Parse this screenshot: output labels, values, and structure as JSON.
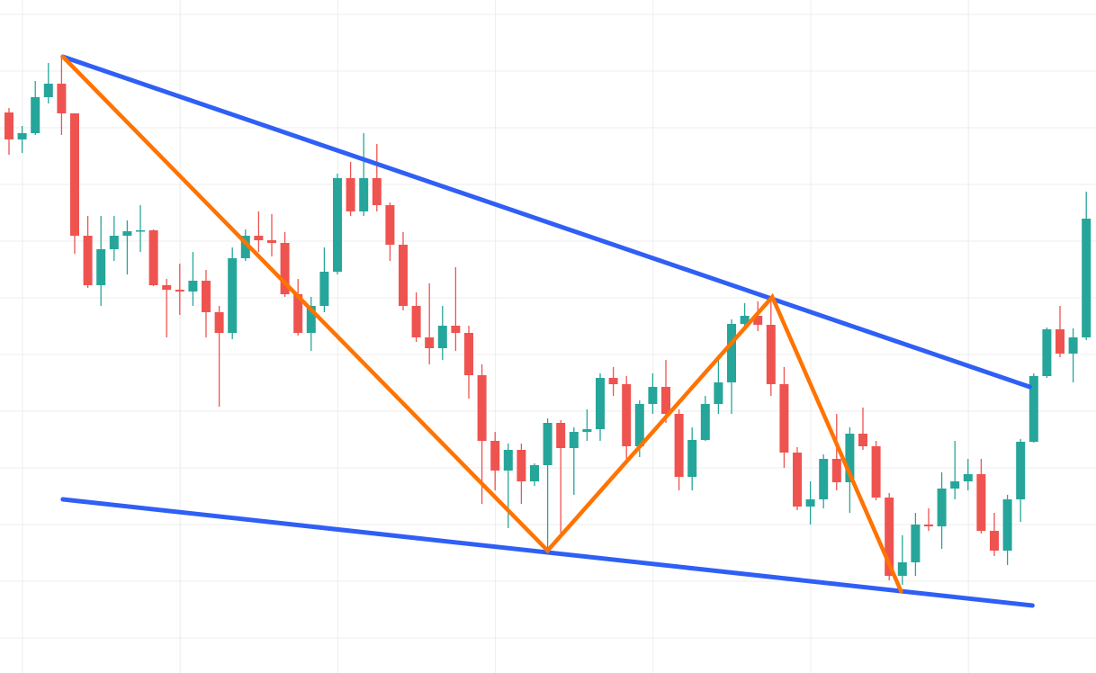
{
  "chart_data": {
    "type": "candlestick",
    "grid": true,
    "ylim": [
      0,
      74.8
    ],
    "xlim": [
      -0.685,
      82.74
    ],
    "up_color": "#26a69a",
    "down_color": "#ef5350",
    "candles": {
      "open": [
        62.3,
        59.3,
        60.0,
        64.0,
        65.5,
        62.2,
        48.6,
        43.1,
        47.1,
        48.6,
        49.1,
        49.2,
        43.1,
        42.6,
        42.4,
        43.6,
        40.1,
        37.8,
        46.1,
        48.6,
        48.1,
        47.8,
        42.1,
        37.8,
        40.8,
        44.6,
        55.0,
        51.3,
        55.0,
        52.0,
        47.6,
        40.8,
        37.3,
        36.1,
        38.6,
        37.8,
        33.1,
        25.8,
        22.5,
        24.8,
        21.3,
        23.1,
        27.8,
        25.0,
        26.8,
        27.1,
        32.8,
        32.1,
        25.2,
        29.9,
        31.8,
        28.8,
        21.8,
        25.9,
        29.9,
        32.3,
        38.8,
        39.7,
        38.7,
        32.1,
        24.5,
        18.5,
        19.3,
        23.8,
        21.2,
        26.6,
        25.2,
        19.5,
        10.8,
        12.3,
        16.5,
        16.3,
        20.5,
        21.3,
        22.1,
        15.8,
        13.6,
        19.3,
        25.7,
        33.0,
        38.2,
        35.5,
        37.3
      ],
      "high": [
        62.8,
        60.8,
        65.8,
        67.8,
        68.5,
        62.2,
        50.8,
        50.8,
        50.8,
        50.3,
        52.0,
        49.3,
        43.8,
        45.5,
        46.8,
        44.8,
        40.8,
        47.3,
        49.3,
        51.3,
        51.0,
        49.0,
        43.8,
        41.8,
        47.3,
        55.5,
        56.8,
        60.0,
        58.8,
        52.3,
        49.0,
        42.3,
        43.3,
        40.8,
        45.1,
        38.6,
        34.3,
        26.8,
        25.5,
        25.5,
        23.3,
        28.3,
        28.1,
        27.3,
        29.3,
        33.3,
        34.0,
        33.0,
        30.3,
        33.3,
        34.8,
        29.3,
        27.3,
        30.8,
        34.8,
        39.3,
        41.1,
        41.3,
        41.8,
        34.0,
        25.1,
        21.3,
        24.3,
        28.8,
        27.3,
        29.5,
        25.8,
        20.0,
        15.3,
        17.8,
        18.3,
        22.3,
        25.8,
        23.8,
        23.8,
        17.8,
        19.8,
        26.0,
        33.3,
        38.4,
        40.8,
        38.3,
        53.5
      ],
      "low": [
        57.6,
        57.8,
        59.8,
        63.3,
        59.8,
        46.6,
        42.8,
        40.8,
        45.8,
        44.3,
        46.8,
        43.0,
        37.3,
        39.8,
        40.8,
        37.3,
        29.6,
        37.1,
        45.8,
        46.8,
        46.3,
        41.8,
        37.5,
        35.8,
        40.1,
        44.3,
        50.8,
        50.8,
        51.3,
        45.8,
        40.3,
        36.8,
        34.3,
        34.8,
        35.8,
        30.5,
        18.8,
        20.3,
        16.1,
        18.8,
        20.8,
        13.6,
        15.0,
        19.8,
        25.8,
        25.8,
        30.8,
        23.8,
        24.0,
        28.8,
        27.8,
        20.3,
        20.3,
        25.8,
        28.8,
        28.8,
        38.3,
        38.0,
        30.8,
        22.8,
        18.1,
        16.5,
        18.3,
        20.3,
        17.8,
        24.8,
        19.2,
        10.3,
        9.8,
        10.8,
        15.8,
        13.8,
        19.3,
        20.3,
        15.5,
        13.0,
        12.0,
        16.8,
        25.6,
        32.8,
        35.1,
        32.3,
        37.0
      ],
      "close": [
        59.3,
        60.0,
        64.0,
        65.5,
        62.2,
        48.6,
        43.1,
        47.1,
        48.6,
        49.1,
        49.2,
        43.1,
        42.6,
        42.4,
        43.6,
        40.1,
        37.8,
        46.1,
        48.6,
        48.1,
        47.8,
        42.1,
        37.8,
        40.8,
        44.6,
        55.0,
        51.3,
        55.0,
        52.0,
        47.6,
        40.8,
        37.3,
        36.1,
        38.6,
        37.8,
        33.1,
        25.8,
        22.5,
        24.8,
        21.3,
        23.1,
        27.8,
        25.0,
        26.8,
        27.1,
        32.8,
        32.1,
        25.2,
        29.9,
        31.8,
        28.8,
        21.8,
        25.9,
        29.9,
        32.3,
        38.8,
        39.7,
        38.7,
        32.1,
        24.5,
        18.5,
        19.3,
        23.8,
        21.2,
        26.6,
        25.2,
        19.5,
        10.8,
        12.3,
        16.5,
        16.3,
        20.5,
        21.3,
        22.1,
        15.8,
        13.6,
        19.3,
        25.7,
        33.0,
        38.2,
        35.5,
        37.3,
        50.5
      ]
    },
    "lines": [
      {
        "color": "#2f5ff5",
        "width": 5,
        "x": [
          4.1,
          77.7
        ],
        "values": [
          68.5,
          31.8
        ]
      },
      {
        "color": "#2f5ff5",
        "width": 5,
        "x": [
          4.1,
          77.9
        ],
        "values": [
          19.3,
          7.5
        ]
      },
      {
        "color": "#ff7300",
        "width": 4.5,
        "x": [
          4.1,
          41.0,
          58.1,
          67.9
        ],
        "values": [
          68.5,
          13.6,
          41.8,
          9.1
        ]
      }
    ]
  }
}
